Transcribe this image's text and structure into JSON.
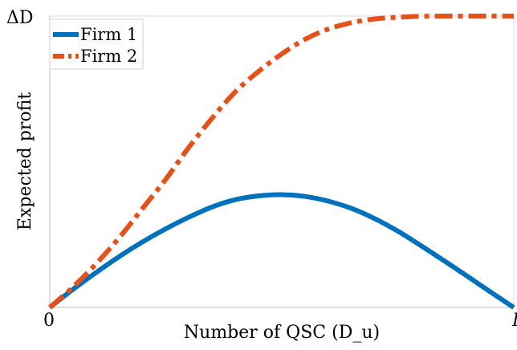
{
  "chart_data": {
    "type": "line",
    "xlabel": "Number of QSC (D_u)",
    "ylabel": "Expected profit",
    "x_ticks": [
      "0",
      "D"
    ],
    "y_ticks": [
      "ΔD"
    ],
    "xlim": [
      0,
      1
    ],
    "ylim": [
      0,
      1
    ],
    "grid": false,
    "legend_position": "top-left",
    "x": [
      0,
      0.05,
      0.1,
      0.15,
      0.2,
      0.25,
      0.3,
      0.35,
      0.4,
      0.45,
      0.5,
      0.55,
      0.6,
      0.65,
      0.7,
      0.75,
      0.8,
      0.85,
      0.9,
      0.95,
      1.0
    ],
    "series": [
      {
        "name": "Firm 1",
        "color": "#0072BD",
        "style": "solid",
        "values": [
          0,
          0.062,
          0.12,
          0.175,
          0.225,
          0.27,
          0.31,
          0.345,
          0.37,
          0.383,
          0.387,
          0.381,
          0.365,
          0.34,
          0.305,
          0.262,
          0.212,
          0.16,
          0.107,
          0.053,
          0
        ]
      },
      {
        "name": "Firm 2",
        "color": "#E8501A",
        "style": "dashdot",
        "values": [
          0,
          0.07,
          0.15,
          0.24,
          0.34,
          0.44,
          0.55,
          0.65,
          0.74,
          0.81,
          0.87,
          0.92,
          0.955,
          0.977,
          0.99,
          0.996,
          0.999,
          1.0,
          1.0,
          1.0,
          1.0
        ]
      }
    ]
  }
}
